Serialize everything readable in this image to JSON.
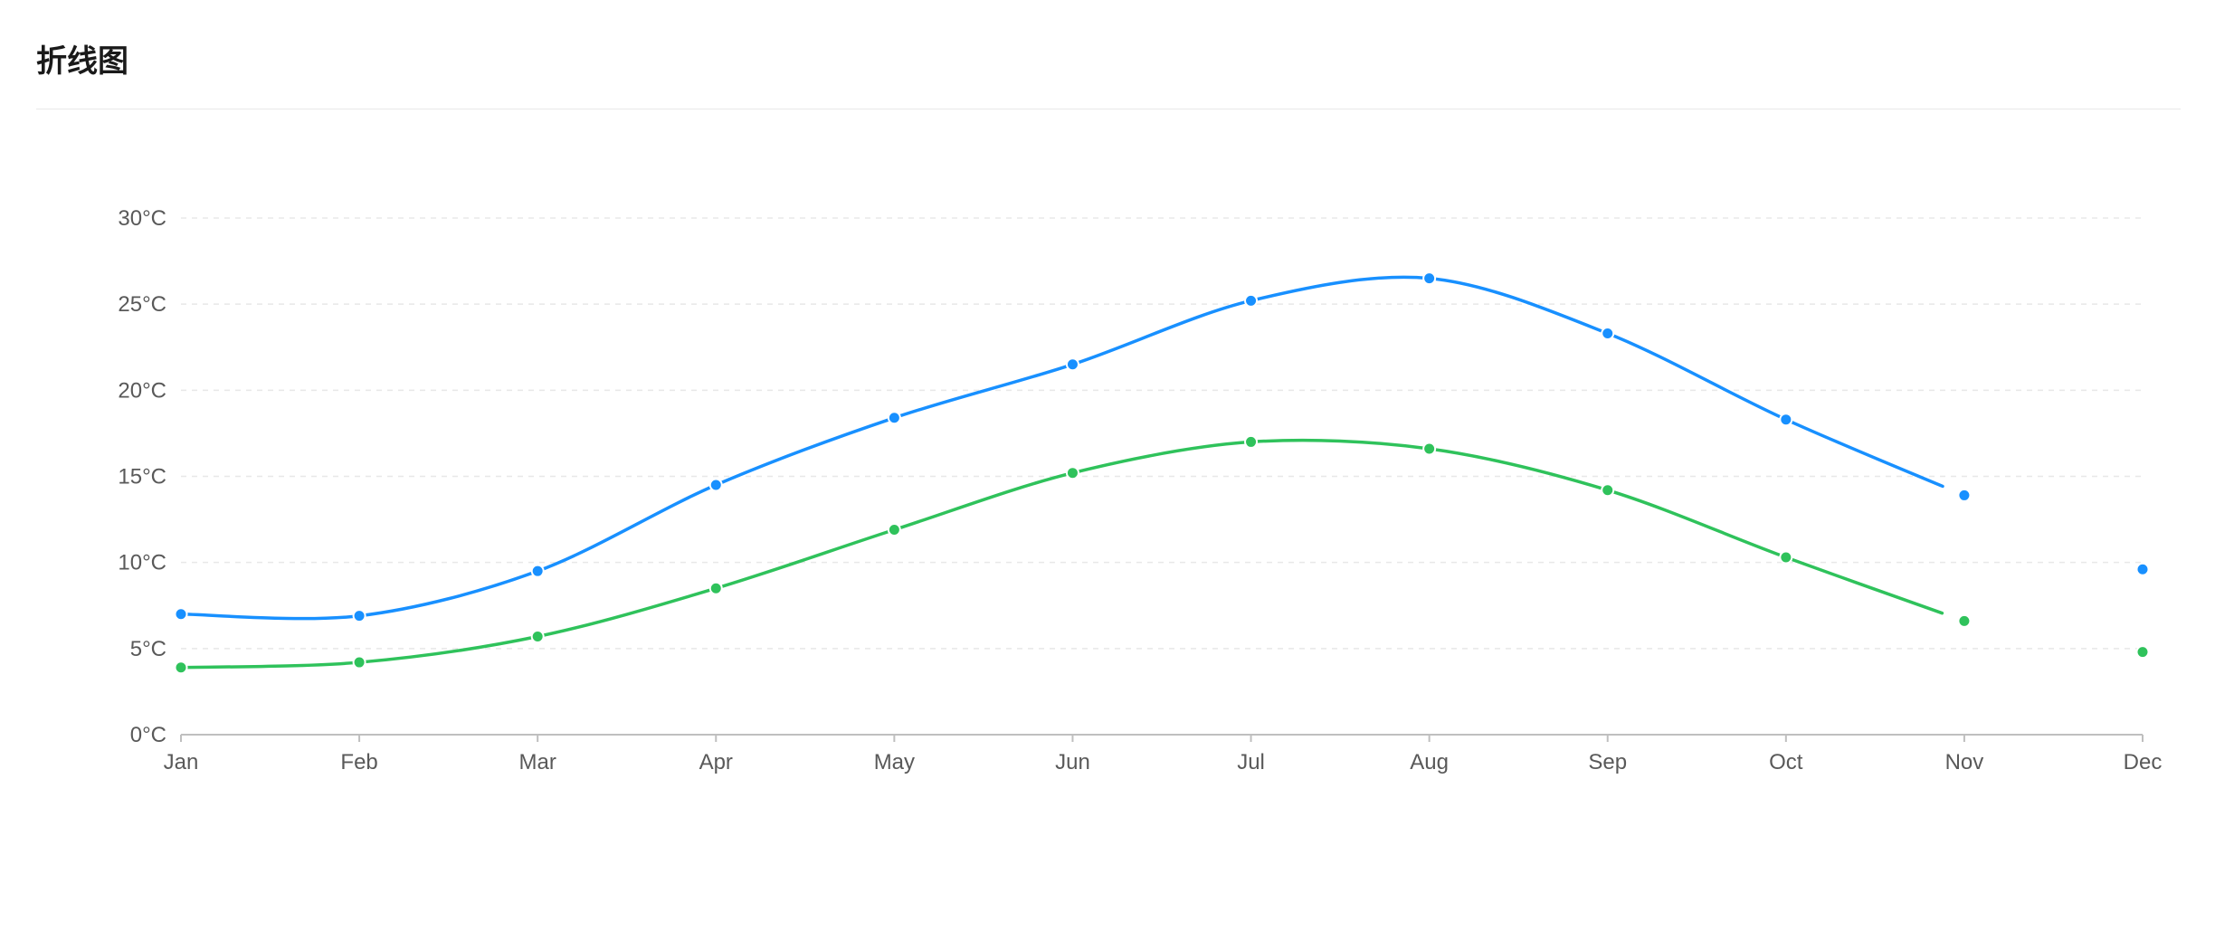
{
  "card": {
    "title": "折线图"
  },
  "chart_data": {
    "type": "line",
    "categories": [
      "Jan",
      "Feb",
      "Mar",
      "Apr",
      "May",
      "Jun",
      "Jul",
      "Aug",
      "Sep",
      "Oct",
      "Nov",
      "Dec"
    ],
    "series": [
      {
        "color": "#1890ff",
        "values": [
          7.0,
          6.9,
          9.5,
          14.5,
          18.4,
          21.5,
          25.2,
          26.5,
          23.3,
          18.3,
          13.9,
          9.6
        ]
      },
      {
        "color": "#2fc25b",
        "values": [
          3.9,
          4.2,
          5.7,
          8.5,
          11.9,
          15.2,
          17.0,
          16.6,
          14.2,
          10.3,
          6.6,
          4.8
        ]
      }
    ],
    "y_ticks": [
      0,
      5,
      10,
      15,
      20,
      25,
      30
    ],
    "y_unit": "°C",
    "ylim": [
      0,
      30
    ],
    "grid": "horizontal-dashed",
    "smooth": true,
    "line_ends_after_category": "Oct"
  }
}
